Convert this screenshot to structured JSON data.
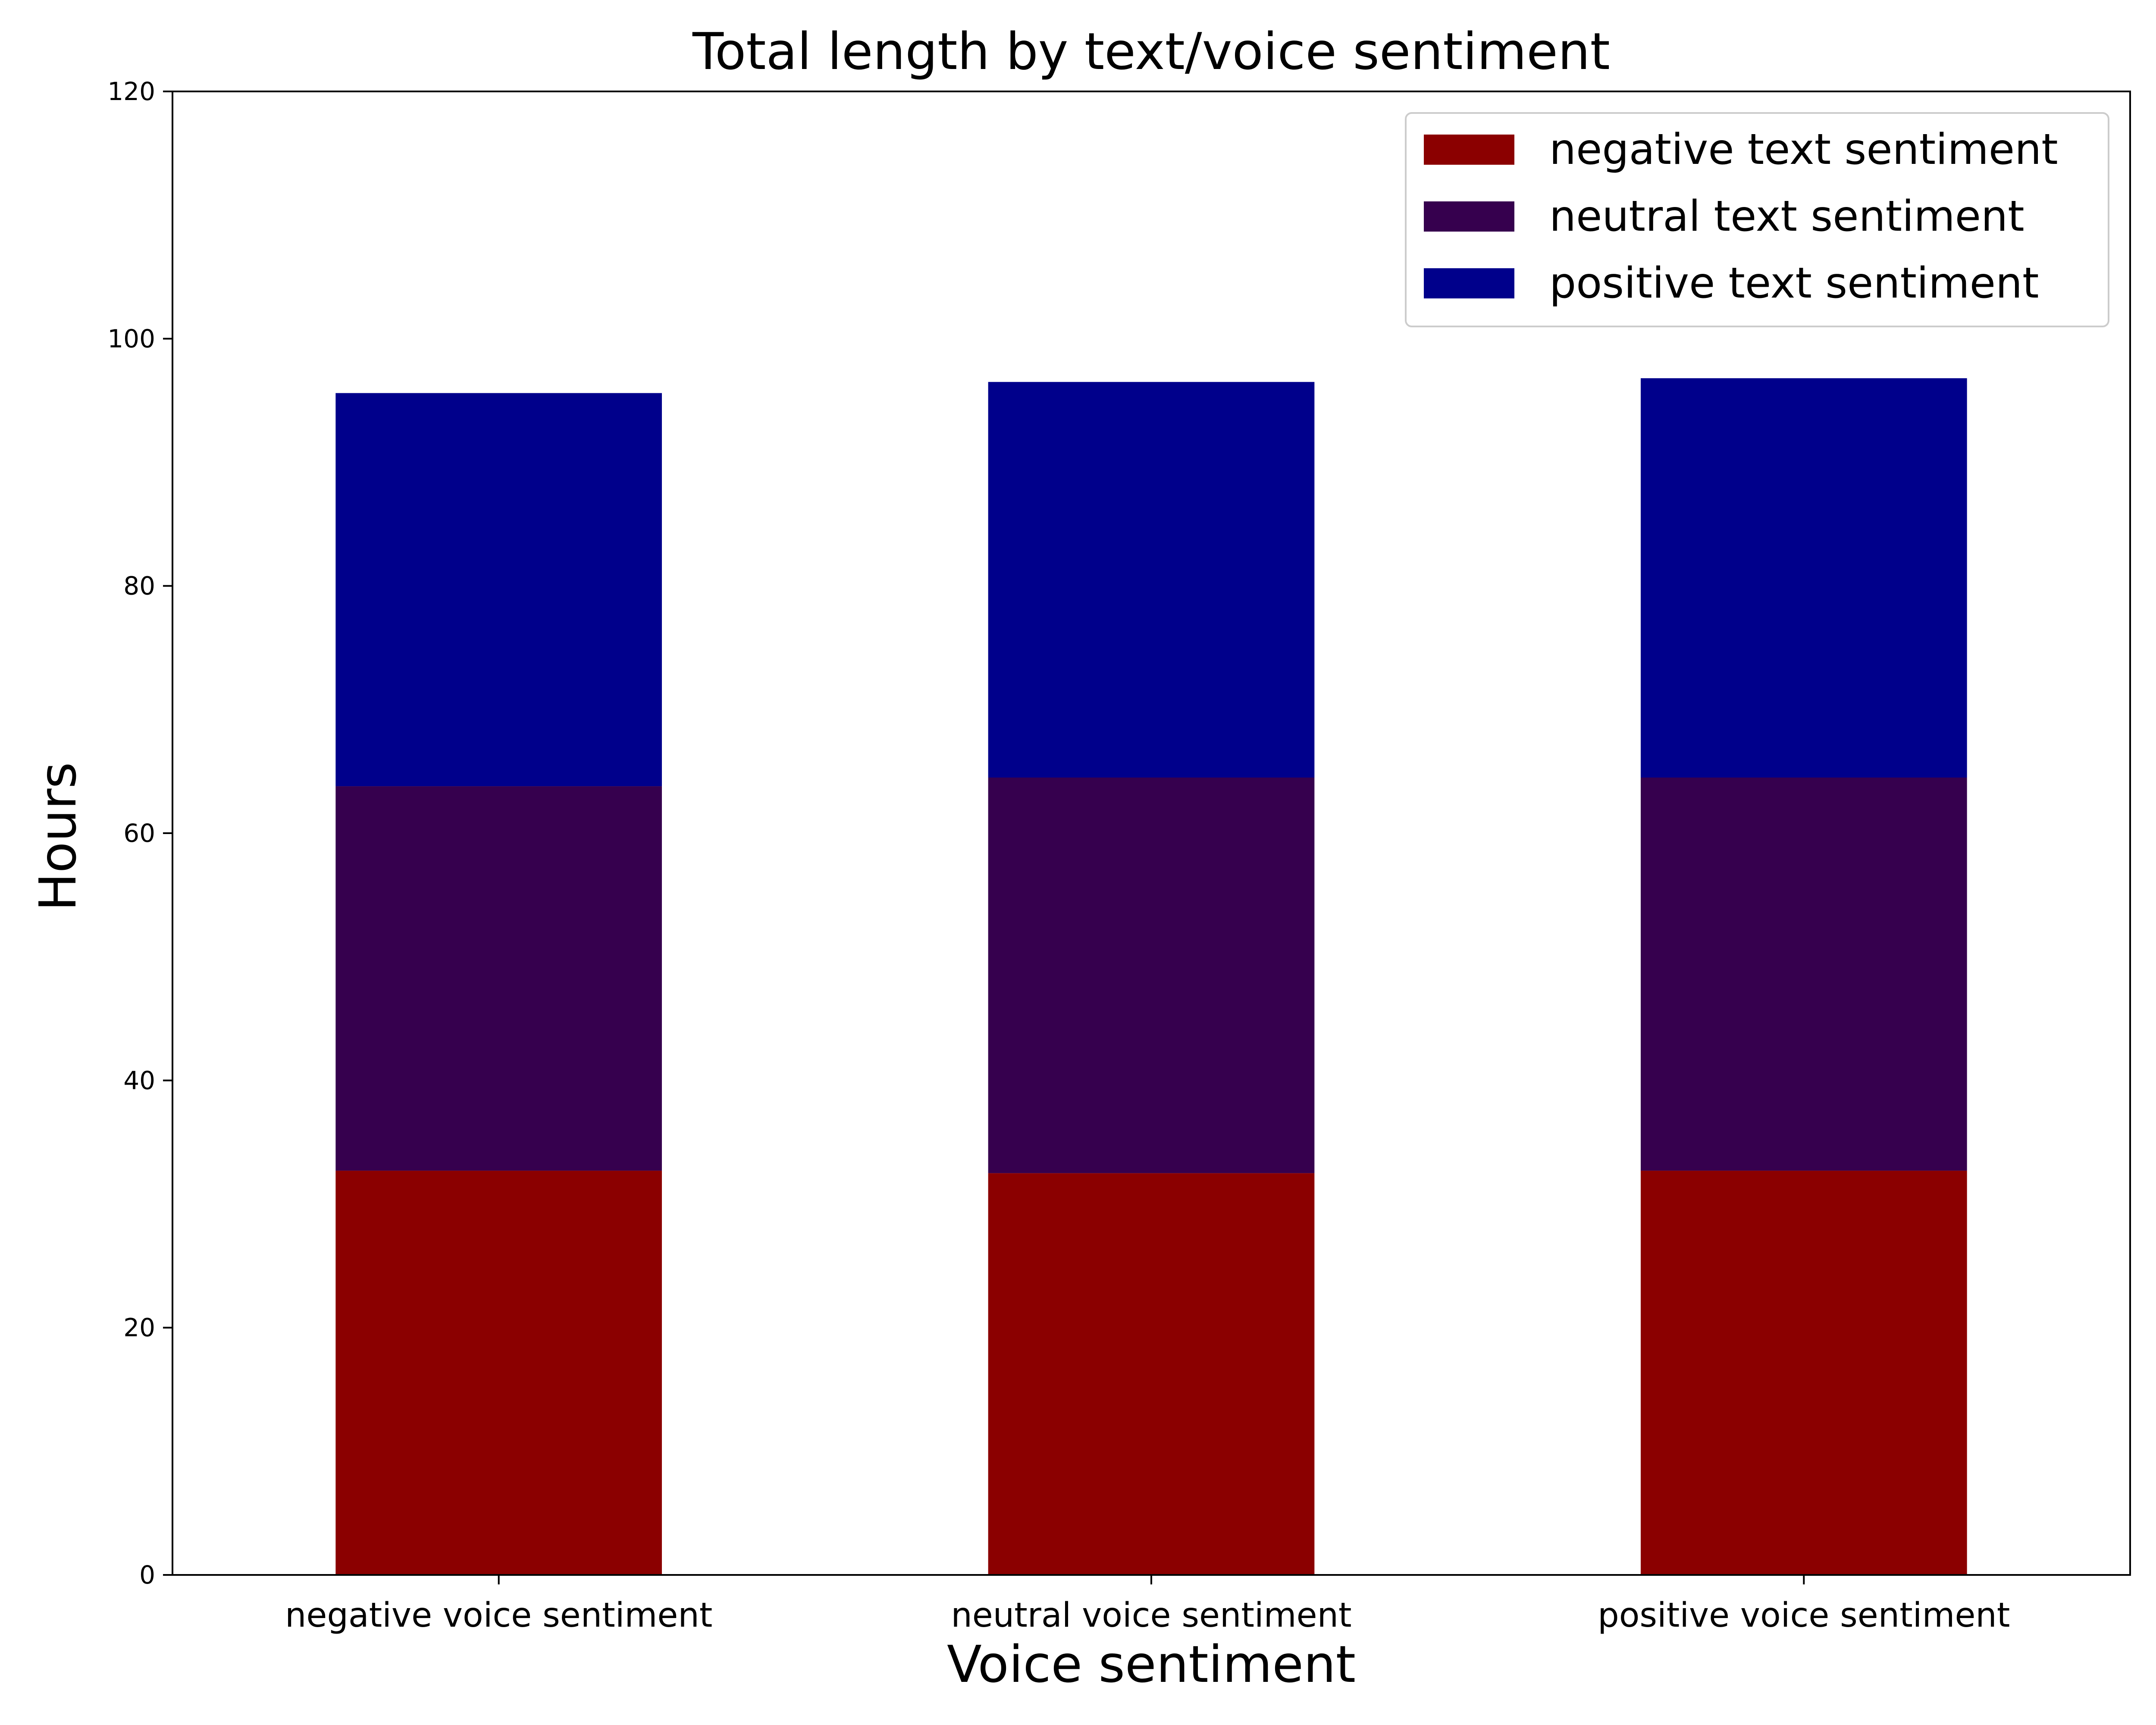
{
  "chart_data": {
    "type": "bar",
    "stacked": true,
    "title": "Total length by text/voice sentiment",
    "xlabel": "Voice sentiment",
    "ylabel": "Hours",
    "categories": [
      "negative voice sentiment",
      "neutral voice sentiment",
      "positive voice sentiment"
    ],
    "series": [
      {
        "name": "negative text sentiment",
        "color": "#8b0000",
        "values": [
          32.7,
          32.5,
          32.7
        ]
      },
      {
        "name": "neutral text sentiment",
        "color": "#36004e",
        "values": [
          31.1,
          32.0,
          31.8
        ]
      },
      {
        "name": "positive text sentiment",
        "color": "#00008b",
        "values": [
          31.8,
          32.0,
          32.3
        ]
      }
    ],
    "ylim": [
      0,
      120
    ],
    "yticks": [
      0,
      20,
      40,
      60,
      80,
      100,
      120
    ],
    "grid": false,
    "legend_position": "top-right"
  }
}
